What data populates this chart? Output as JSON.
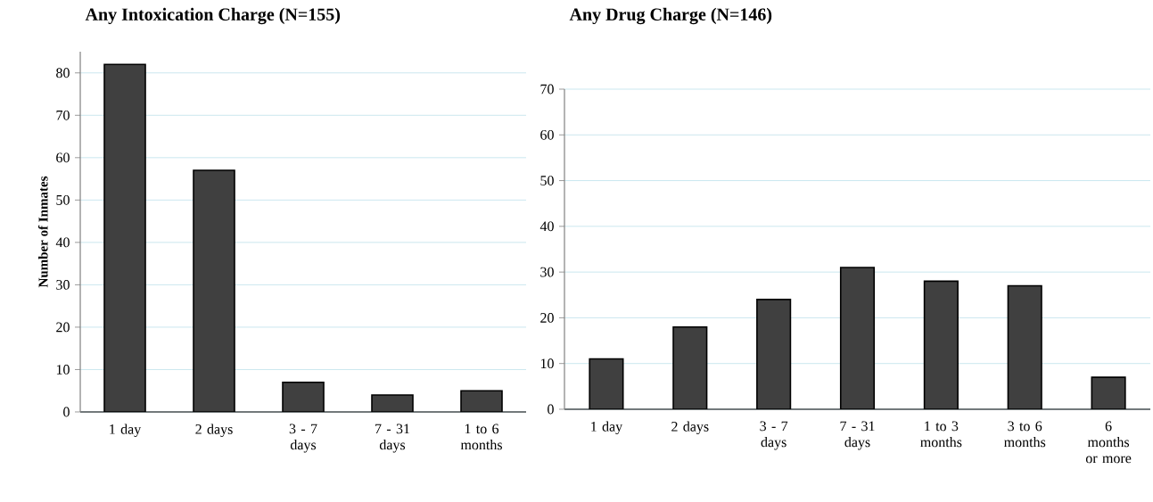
{
  "chart_data": [
    {
      "type": "bar",
      "title": "Any Intoxication Charge (N=155)",
      "ylabel": "Number of Inmates",
      "categories": [
        "1 day",
        "2 days",
        "3 - 7 days",
        "7 - 31 days",
        "1 to 6 months"
      ],
      "values": [
        82,
        57,
        7,
        4,
        5
      ],
      "color": "#404040",
      "ylim": [
        0,
        85
      ],
      "yticks": [
        0,
        10,
        20,
        30,
        40,
        50,
        60,
        70,
        80
      ],
      "grid": "y"
    },
    {
      "type": "bar",
      "title": "Any Drug Charge (N=146)",
      "categories": [
        "1 day",
        "2 days",
        "3 - 7 days",
        "7 - 31 days",
        "1 to 3 months",
        "3 to 6 months",
        "6 months or more"
      ],
      "values": [
        11,
        18,
        24,
        31,
        28,
        27,
        7
      ],
      "color": "#404040",
      "ylim": [
        0,
        70
      ],
      "yticks": [
        0,
        10,
        20,
        30,
        40,
        50,
        60,
        70
      ],
      "grid": "y"
    }
  ]
}
